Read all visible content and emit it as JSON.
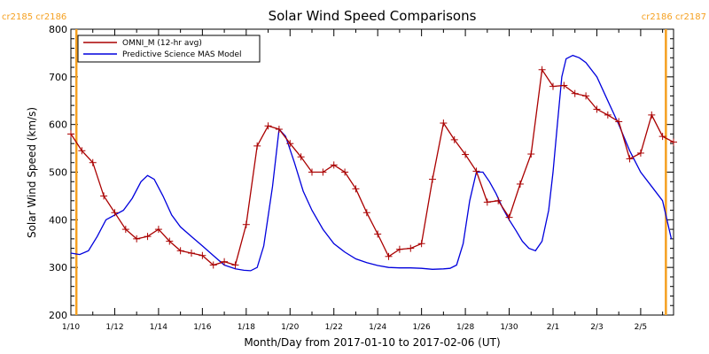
{
  "chart_data": {
    "type": "line",
    "title": "Solar Wind Speed Comparisons",
    "xlabel": "Month/Day from 2017-01-10 to 2017-02-06 (UT)",
    "ylabel": "Solar Wind Speed (km/s)",
    "xlim_days": [
      0,
      27.5
    ],
    "ylim": [
      200,
      800
    ],
    "yticks": [
      200,
      300,
      400,
      500,
      600,
      700,
      800
    ],
    "xtick_labels": [
      "1/10",
      "1/12",
      "1/14",
      "1/16",
      "1/18",
      "1/20",
      "1/22",
      "1/24",
      "1/26",
      "1/28",
      "1/30",
      "2/1",
      "2/3",
      "2/5"
    ],
    "carrington_labels": {
      "left": "cr2185 cr2186",
      "right": "cr2186 cr2187"
    },
    "carrington_line_days": [
      0.25,
      27.15
    ],
    "legend_position": "top-left",
    "series": [
      {
        "name": "OMNI_M (12-hr avg)",
        "color": "#aa0000",
        "marker": "+",
        "x": [
          0.0,
          0.5,
          1.0,
          1.5,
          2.0,
          2.5,
          3.0,
          3.5,
          4.0,
          4.5,
          5.0,
          5.5,
          6.0,
          6.5,
          7.0,
          7.5,
          8.0,
          8.5,
          9.0,
          9.5,
          10.0,
          10.5,
          11.0,
          11.5,
          12.0,
          12.5,
          13.0,
          13.5,
          14.0,
          14.5,
          15.0,
          15.5,
          16.0,
          16.5,
          17.0,
          17.5,
          18.0,
          18.5,
          19.0,
          19.5,
          20.0,
          20.5,
          21.0,
          21.5,
          22.0,
          22.5,
          23.0,
          23.5,
          24.0,
          24.5,
          25.0,
          25.5,
          26.0,
          26.5,
          27.0,
          27.5
        ],
        "y": [
          580,
          545,
          520,
          450,
          415,
          380,
          360,
          365,
          380,
          355,
          335,
          330,
          325,
          305,
          312,
          305,
          390,
          555,
          597,
          590,
          560,
          532,
          500,
          500,
          515,
          500,
          465,
          415,
          370,
          323,
          338,
          340,
          350,
          485,
          603,
          568,
          537,
          502,
          437,
          440,
          405,
          475,
          538,
          715,
          680,
          682,
          665,
          660,
          632,
          620,
          606,
          528,
          540,
          620,
          575,
          563
        ]
      },
      {
        "name": "Predictive Science MAS Model",
        "color": "#0000dd",
        "marker": "",
        "x": [
          0.0,
          0.4,
          0.8,
          1.2,
          1.6,
          2.0,
          2.4,
          2.8,
          3.2,
          3.5,
          3.8,
          4.2,
          4.6,
          5.0,
          5.5,
          6.0,
          6.5,
          7.0,
          7.5,
          7.9,
          8.2,
          8.5,
          8.8,
          9.2,
          9.5,
          9.8,
          10.2,
          10.6,
          11.0,
          11.5,
          12.0,
          12.5,
          13.0,
          13.5,
          14.0,
          14.5,
          15.0,
          15.5,
          16.0,
          16.5,
          17.0,
          17.3,
          17.6,
          17.9,
          18.2,
          18.5,
          18.8,
          19.1,
          19.4,
          19.7,
          20.0,
          20.3,
          20.6,
          20.9,
          21.2,
          21.5,
          21.8,
          22.0,
          22.2,
          22.4,
          22.6,
          22.9,
          23.2,
          23.5,
          24.0,
          24.5,
          25.0,
          25.5,
          26.0,
          26.5,
          27.0,
          27.4
        ],
        "y": [
          330,
          327,
          335,
          365,
          400,
          410,
          420,
          445,
          480,
          493,
          485,
          450,
          410,
          385,
          365,
          345,
          325,
          305,
          297,
          294,
          293,
          300,
          345,
          470,
          590,
          575,
          520,
          460,
          420,
          380,
          350,
          332,
          318,
          310,
          304,
          300,
          299,
          299,
          298,
          296,
          297,
          298,
          305,
          350,
          440,
          500,
          500,
          480,
          455,
          425,
          400,
          378,
          355,
          340,
          335,
          355,
          420,
          500,
          600,
          700,
          738,
          745,
          740,
          730,
          700,
          650,
          600,
          545,
          500,
          470,
          440,
          360
        ]
      }
    ],
    "grid": false
  }
}
